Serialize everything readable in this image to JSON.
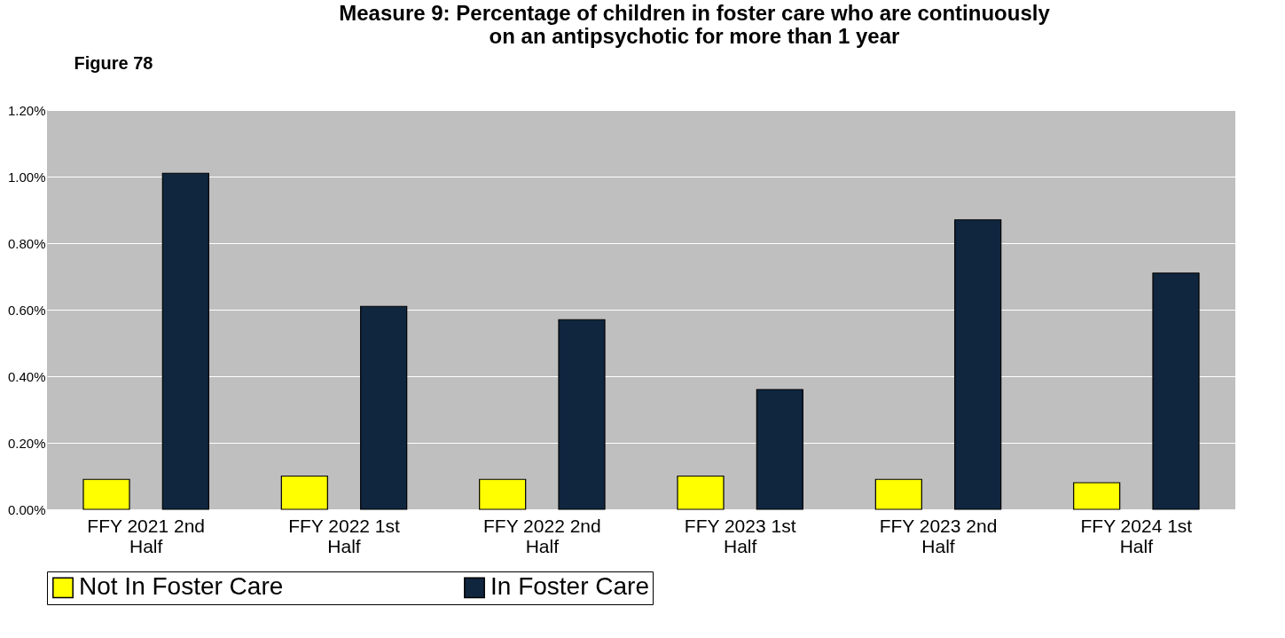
{
  "chart_data": {
    "type": "bar",
    "title": "Measure 9: Percentage of children in foster care who are continuously on an antipsychotic for more than 1 year",
    "categories": [
      "FFY 2021 2nd Half",
      "FFY 2022 1st Half",
      "FFY 2022 2nd Half",
      "FFY 2023 1st Half",
      "FFY 2023 2nd Half",
      "FFY 2024 1st Half"
    ],
    "series": [
      {
        "name": "Not In Foster Care",
        "color": "#ffff00",
        "values": [
          0.09,
          0.1,
          0.09,
          0.1,
          0.09,
          0.08
        ]
      },
      {
        "name": "In Foster Care",
        "color": "#10263f",
        "values": [
          1.01,
          0.61,
          0.57,
          0.36,
          0.87,
          0.71
        ]
      }
    ],
    "ylim": [
      0,
      1.2
    ],
    "yticks": [
      {
        "value": 0,
        "label": "0.00%"
      },
      {
        "value": 0.2,
        "label": "0.20%"
      },
      {
        "value": 0.4,
        "label": "0.40%"
      },
      {
        "value": 0.6,
        "label": "0.60%"
      },
      {
        "value": 0.8,
        "label": "0.80%"
      },
      {
        "value": 1.0,
        "label": "1.00%"
      },
      {
        "value": 1.2,
        "label": "1.20%"
      }
    ],
    "grid": "y",
    "legend": "bottom",
    "annotations": [
      "Figure 78"
    ]
  }
}
